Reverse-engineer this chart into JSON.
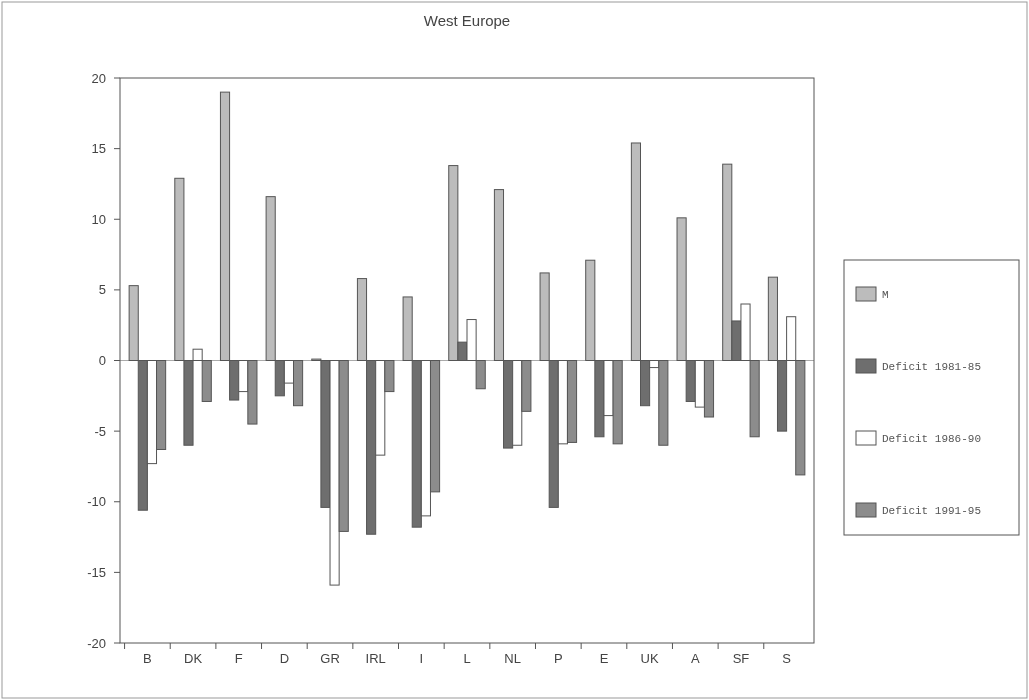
{
  "chart_data": {
    "type": "bar",
    "title": "West Europe",
    "categories": [
      "B",
      "DK",
      "F",
      "D",
      "GR",
      "IRL",
      "I",
      "L",
      "NL",
      "P",
      "E",
      "UK",
      "A",
      "SF",
      "S"
    ],
    "series": [
      {
        "name": "M",
        "color": "#bcbcbc",
        "values": [
          5.3,
          12.9,
          19.0,
          11.6,
          0.1,
          5.8,
          4.5,
          13.8,
          12.1,
          6.2,
          7.1,
          15.4,
          10.1,
          13.9,
          5.9
        ]
      },
      {
        "name": "Deficit 1981-85",
        "color": "#6e6e6e",
        "values": [
          -10.6,
          -6.0,
          -2.8,
          -2.5,
          -10.4,
          -12.3,
          -11.8,
          1.3,
          -6.2,
          -10.4,
          -5.4,
          -3.2,
          -2.9,
          2.8,
          -5.0
        ]
      },
      {
        "name": "Deficit 1986-90",
        "color": "#ffffff",
        "values": [
          -7.3,
          0.8,
          -2.2,
          -1.6,
          -15.9,
          -6.7,
          -11.0,
          2.9,
          -6.0,
          -5.9,
          -3.9,
          -0.5,
          -3.3,
          4.0,
          3.1
        ]
      },
      {
        "name": "Deficit 1991-95",
        "color": "#8c8c8c",
        "values": [
          -6.3,
          -2.9,
          -4.5,
          -3.2,
          -12.1,
          -2.2,
          -9.3,
          -2.0,
          -3.6,
          -5.8,
          -5.9,
          -6.0,
          -4.0,
          -5.4,
          -8.1
        ]
      }
    ],
    "ylim": [
      -20,
      20
    ],
    "yticks": [
      -20,
      -15,
      -10,
      -5,
      0,
      5,
      10,
      15,
      20
    ],
    "legend": "right"
  }
}
